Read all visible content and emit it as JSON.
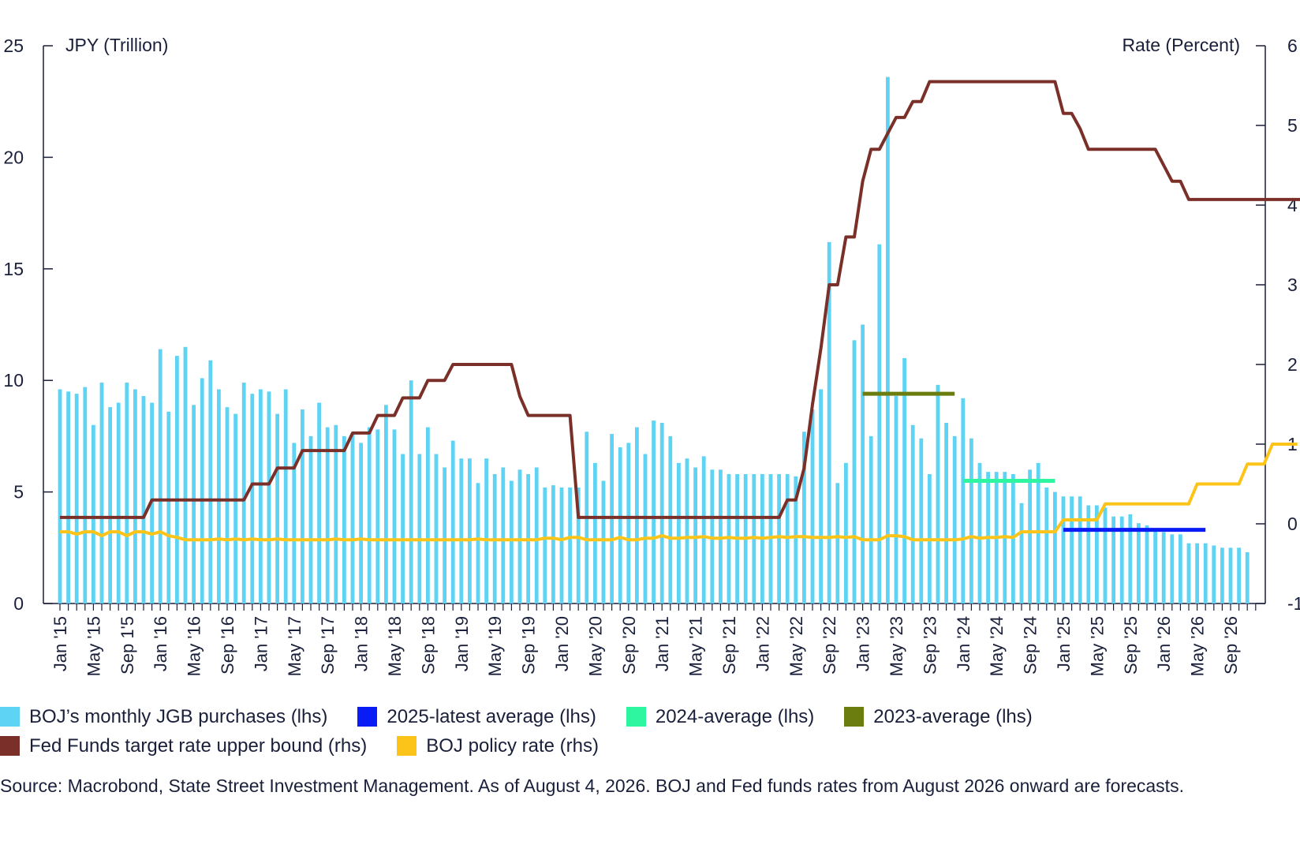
{
  "chart_data": {
    "type": "bar+line",
    "left_axis_label": "JPY (Trillion)",
    "right_axis_label": "Rate (Percent)",
    "left_ylim": [
      0,
      25
    ],
    "right_ylim": [
      -1,
      6
    ],
    "left_ticks": [
      "0",
      "5",
      "10",
      "15",
      "20",
      "25"
    ],
    "right_ticks": [
      "-1",
      "0",
      "1",
      "2",
      "3",
      "4",
      "5",
      "6"
    ],
    "x_tick_labels": [
      "Jan '15",
      "May '15",
      "Sep 1'5",
      "Jan '16",
      "May '16",
      "Sep '16",
      "Jan '17",
      "May '17",
      "Sep '17",
      "Jan '18",
      "May '18",
      "Sep '18",
      "Jan '19",
      "May '19",
      "Sep '19",
      "Jan '20",
      "May '20",
      "Sep '20",
      "Jan '21",
      "May '21",
      "Sep '21",
      "Jan '22",
      "May '22",
      "Sep '22",
      "Jan '23",
      "May '23",
      "Sep '23",
      "Jan '24",
      "May '24",
      "Sep '24",
      "Jan '25",
      "May '25",
      "Sep '25",
      "Jan '26",
      "May '26",
      "Sep '26"
    ],
    "start_month": "Jan 2015",
    "end_month": "Dec 2026",
    "series": [
      {
        "name": "BOJ’s monthly JGB purchases (lhs)",
        "type": "bar",
        "axis": "left",
        "color": "#5fd3f3",
        "values": [
          9.6,
          9.5,
          9.4,
          9.7,
          8.0,
          9.9,
          8.8,
          9.0,
          9.9,
          9.6,
          9.3,
          9.0,
          11.4,
          8.6,
          11.1,
          11.5,
          8.9,
          10.1,
          10.9,
          9.6,
          8.8,
          8.5,
          9.9,
          9.4,
          9.6,
          9.5,
          8.5,
          9.6,
          7.2,
          8.7,
          7.5,
          9.0,
          7.9,
          8.0,
          7.5,
          7.6,
          7.2,
          7.9,
          7.8,
          8.9,
          7.8,
          6.7,
          10.0,
          6.7,
          7.9,
          6.7,
          6.1,
          7.3,
          6.5,
          6.5,
          5.4,
          6.5,
          5.8,
          6.1,
          5.5,
          6.0,
          5.8,
          6.1,
          5.2,
          5.3,
          5.2,
          5.2,
          5.2,
          7.7,
          6.3,
          5.5,
          7.6,
          7.0,
          7.2,
          7.9,
          6.7,
          8.2,
          8.1,
          7.5,
          6.3,
          6.5,
          6.1,
          6.6,
          6.0,
          6.0,
          5.8,
          5.8,
          5.8,
          5.8,
          5.8,
          5.8,
          5.8,
          5.8,
          5.7,
          7.7,
          8.7,
          9.6,
          16.2,
          5.4,
          6.3,
          11.8,
          12.5,
          7.5,
          16.1,
          23.6,
          9.3,
          11.0,
          8.0,
          7.4,
          5.8,
          9.8,
          8.1,
          7.5,
          9.2,
          7.4,
          6.3,
          5.9,
          5.9,
          5.9,
          5.8,
          4.5,
          6.0,
          6.3,
          5.2,
          5.0,
          4.8,
          4.8,
          4.8,
          4.4,
          4.4,
          4.3,
          3.9,
          3.9,
          4.0,
          3.6,
          3.5,
          3.3,
          3.2,
          3.1,
          3.1,
          2.7,
          2.7,
          2.7,
          2.6,
          2.5,
          2.5,
          2.5,
          2.3
        ]
      },
      {
        "name": "2025-latest average (lhs)",
        "type": "segment",
        "axis": "left",
        "color": "#0a1cf5",
        "value": 3.3,
        "from": "Jan 2025",
        "to": "Jun 2026"
      },
      {
        "name": "2024-average (lhs)",
        "type": "segment",
        "axis": "left",
        "color": "#2df5a0",
        "value": 5.5,
        "from": "Jan 2024",
        "to": "Dec 2024"
      },
      {
        "name": "2023-average (lhs)",
        "type": "segment",
        "axis": "left",
        "color": "#6b7d0e",
        "value": 9.4,
        "from": "Jan 2023",
        "to": "Dec 2023"
      },
      {
        "name": "Fed Funds target rate upper bound (rhs)",
        "type": "line",
        "axis": "right",
        "color": "#7a3028",
        "values": [
          0.08,
          0.08,
          0.08,
          0.08,
          0.08,
          0.08,
          0.08,
          0.08,
          0.08,
          0.08,
          0.08,
          0.3,
          0.3,
          0.3,
          0.3,
          0.3,
          0.3,
          0.3,
          0.3,
          0.3,
          0.3,
          0.3,
          0.3,
          0.5,
          0.5,
          0.5,
          0.7,
          0.7,
          0.7,
          0.92,
          0.92,
          0.92,
          0.92,
          0.92,
          0.92,
          1.14,
          1.14,
          1.14,
          1.36,
          1.36,
          1.36,
          1.58,
          1.58,
          1.58,
          1.8,
          1.8,
          1.8,
          2.0,
          2.0,
          2.0,
          2.0,
          2.0,
          2.0,
          2.0,
          2.0,
          1.6,
          1.36,
          1.36,
          1.36,
          1.36,
          1.36,
          1.36,
          0.08,
          0.08,
          0.08,
          0.08,
          0.08,
          0.08,
          0.08,
          0.08,
          0.08,
          0.08,
          0.08,
          0.08,
          0.08,
          0.08,
          0.08,
          0.08,
          0.08,
          0.08,
          0.08,
          0.08,
          0.08,
          0.08,
          0.08,
          0.08,
          0.08,
          0.3,
          0.3,
          0.7,
          1.5,
          2.2,
          3.0,
          3.0,
          3.6,
          3.6,
          4.3,
          4.7,
          4.7,
          4.9,
          5.1,
          5.1,
          5.3,
          5.3,
          5.55,
          5.55,
          5.55,
          5.55,
          5.55,
          5.55,
          5.55,
          5.55,
          5.55,
          5.55,
          5.55,
          5.55,
          5.55,
          5.55,
          5.55,
          5.55,
          5.15,
          5.15,
          4.96,
          4.7,
          4.7,
          4.7,
          4.7,
          4.7,
          4.7,
          4.7,
          4.7,
          4.7,
          4.5,
          4.3,
          4.3,
          4.07,
          4.07,
          4.07,
          4.07,
          4.07,
          4.07,
          4.07,
          4.07,
          4.07,
          4.07,
          4.07,
          4.07,
          4.07,
          4.07,
          4.07,
          4.07
        ]
      },
      {
        "name": "BOJ policy rate (rhs)",
        "type": "line",
        "axis": "right",
        "color": "#fcc419",
        "values": [
          -0.1,
          -0.1,
          -0.13,
          -0.1,
          -0.1,
          -0.15,
          -0.1,
          -0.1,
          -0.15,
          -0.1,
          -0.1,
          -0.13,
          -0.1,
          -0.15,
          -0.17,
          -0.2,
          -0.2,
          -0.2,
          -0.2,
          -0.19,
          -0.2,
          -0.19,
          -0.2,
          -0.19,
          -0.2,
          -0.2,
          -0.19,
          -0.2,
          -0.2,
          -0.2,
          -0.2,
          -0.2,
          -0.2,
          -0.19,
          -0.2,
          -0.2,
          -0.19,
          -0.2,
          -0.2,
          -0.2,
          -0.2,
          -0.2,
          -0.2,
          -0.2,
          -0.2,
          -0.2,
          -0.2,
          -0.2,
          -0.2,
          -0.2,
          -0.19,
          -0.2,
          -0.2,
          -0.2,
          -0.2,
          -0.2,
          -0.2,
          -0.2,
          -0.18,
          -0.18,
          -0.2,
          -0.17,
          -0.17,
          -0.2,
          -0.2,
          -0.2,
          -0.2,
          -0.17,
          -0.2,
          -0.2,
          -0.18,
          -0.18,
          -0.15,
          -0.18,
          -0.18,
          -0.17,
          -0.17,
          -0.16,
          -0.18,
          -0.18,
          -0.17,
          -0.18,
          -0.18,
          -0.17,
          -0.18,
          -0.17,
          -0.16,
          -0.17,
          -0.16,
          -0.16,
          -0.17,
          -0.17,
          -0.17,
          -0.16,
          -0.17,
          -0.16,
          -0.2,
          -0.2,
          -0.2,
          -0.15,
          -0.15,
          -0.16,
          -0.2,
          -0.2,
          -0.2,
          -0.2,
          -0.2,
          -0.2,
          -0.19,
          -0.16,
          -0.18,
          -0.17,
          -0.17,
          -0.16,
          -0.17,
          -0.1,
          -0.1,
          -0.1,
          -0.1,
          -0.1,
          0.05,
          0.05,
          0.05,
          0.05,
          0.05,
          0.25,
          0.25,
          0.25,
          0.25,
          0.25,
          0.25,
          0.25,
          0.25,
          0.25,
          0.25,
          0.25,
          0.5,
          0.5,
          0.5,
          0.5,
          0.5,
          0.5,
          0.75,
          0.75,
          0.75,
          1.0,
          1.0,
          1.0,
          1.0
        ]
      }
    ]
  },
  "legend": {
    "row1": [
      "BOJ’s monthly JGB purchases (lhs)",
      "2025-latest average (lhs)",
      "2024-average (lhs)",
      "2023-average (lhs)"
    ],
    "row2": [
      "Fed Funds target rate upper bound (rhs)",
      "BOJ policy rate (rhs)"
    ],
    "colors": [
      "#5fd3f3",
      "#0a1cf5",
      "#2df5a0",
      "#6b7d0e",
      "#7a3028",
      "#fcc419"
    ]
  },
  "source_note": "Source: Macrobond, State Street Investment Management. As of August 4, 2026. BOJ and Fed funds rates from August 2026 onward are forecasts."
}
